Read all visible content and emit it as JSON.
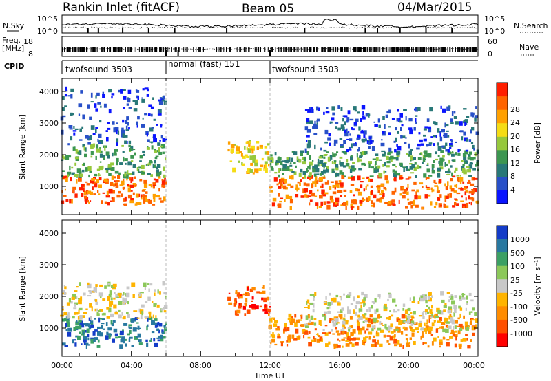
{
  "header": {
    "station": "Rankin Inlet (fitACF)",
    "beam": "Beam 05",
    "date": "04/Mar/2015"
  },
  "noise_panel": {
    "left_label": "N.Sky",
    "right_label": "N.Search",
    "left_ticks": [
      "10^5",
      "10^0"
    ],
    "right_ticks": [
      "10^5",
      "10^0"
    ]
  },
  "freq_panel": {
    "left_label_1": "Freq.",
    "left_label_2": "[MHz]",
    "left_ticks": [
      "18",
      "8"
    ],
    "right_label": "Nave",
    "right_ticks": [
      "60",
      "0"
    ]
  },
  "cpid": {
    "label": "CPID",
    "segments": [
      {
        "label": "twofsound 3503",
        "start": 0,
        "end": 6
      },
      {
        "label": "normal (fast) 151",
        "start": 6,
        "end": 12
      },
      {
        "label": "twofsound 3503",
        "start": 12,
        "end": 24
      }
    ]
  },
  "chart_data": [
    {
      "type": "heatmap",
      "ylabel": "Slant Range [km]",
      "xlabel": "",
      "x_unit": "hours UT",
      "xlim": [
        0,
        24
      ],
      "ylim": [
        200,
        4500
      ],
      "yticks": [
        1000,
        2000,
        3000,
        4000
      ],
      "dashed_lines_at_hour": [
        6,
        12
      ],
      "colorbar": {
        "label": "Power [dB]",
        "ticks": [
          "4",
          "8",
          "12",
          "16",
          "20",
          "24",
          "28"
        ],
        "colors": [
          "#0a14ff",
          "#2850c8",
          "#287878",
          "#3c9650",
          "#96c83c",
          "#f5dc14",
          "#ffa000",
          "#ff6400",
          "#ff1e00"
        ]
      },
      "regions": [
        {
          "t0": 0.0,
          "t1": 6.0,
          "r0": 500,
          "r1": 1400,
          "level": 7
        },
        {
          "t0": 0.0,
          "t1": 6.0,
          "r0": 1400,
          "r1": 2400,
          "level": 3
        },
        {
          "t0": 0.0,
          "t1": 6.0,
          "r0": 2400,
          "r1": 4200,
          "level": 1
        },
        {
          "t0": 9.6,
          "t1": 12.0,
          "r0": 1500,
          "r1": 2500,
          "level": 5
        },
        {
          "t0": 12.0,
          "t1": 24.0,
          "r0": 400,
          "r1": 1400,
          "level": 7
        },
        {
          "t0": 12.0,
          "t1": 24.0,
          "r0": 1400,
          "r1": 2200,
          "level": 3
        },
        {
          "t0": 14.0,
          "t1": 24.0,
          "r0": 2200,
          "r1": 3600,
          "level": 1
        }
      ]
    },
    {
      "type": "heatmap",
      "ylabel": "Slant Range [km]",
      "xlabel": "Time UT",
      "x_unit": "hours UT",
      "xlim": [
        0,
        24
      ],
      "ylim": [
        200,
        4500
      ],
      "yticks": [
        1000,
        2000,
        3000,
        4000
      ],
      "xticks": [
        "00:00",
        "04:00",
        "08:00",
        "12:00",
        "16:00",
        "20:00",
        "00:00"
      ],
      "dashed_lines_at_hour": [
        6,
        12
      ],
      "colorbar": {
        "label": "Velocity [m s⁻¹]",
        "ticks": [
          "1000",
          "500",
          "100",
          "25",
          "-25",
          "-100",
          "-500",
          "-1000"
        ],
        "colors": [
          "#143cc8",
          "#2878a0",
          "#3ca064",
          "#8cc85a",
          "#c8c8c8",
          "#ffb400",
          "#ff8c00",
          "#ff5000",
          "#ff0000"
        ]
      },
      "regions": [
        {
          "t0": 0.0,
          "t1": 6.0,
          "r0": 500,
          "r1": 1400,
          "level": 1
        },
        {
          "t0": 0.0,
          "t1": 6.0,
          "r0": 1400,
          "r1": 2500,
          "level": 4
        },
        {
          "t0": 9.6,
          "t1": 12.0,
          "r0": 1500,
          "r1": 2400,
          "level": 7
        },
        {
          "t0": 12.0,
          "t1": 24.0,
          "r0": 500,
          "r1": 1500,
          "level": 6
        },
        {
          "t0": 14.0,
          "t1": 24.0,
          "r0": 1000,
          "r1": 2200,
          "level": 4
        }
      ]
    }
  ]
}
